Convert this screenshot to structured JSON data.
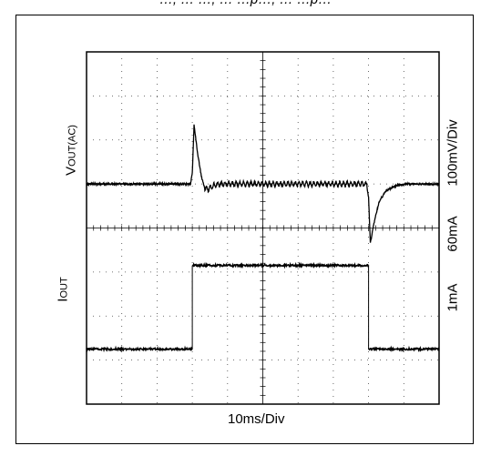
{
  "header": {
    "caption": "…,  …  …,  …  …p…,  …  …p…"
  },
  "chart_data": {
    "type": "line",
    "title": "",
    "xlabel": "10ms/Div",
    "divisions": {
      "x": 10,
      "y": 8
    },
    "grid": true,
    "x_range_ms": [
      0,
      100
    ],
    "series": [
      {
        "name": "VOUT(AC)",
        "scale": "100mV/Div",
        "unit": "mV",
        "points_ms_mV": [
          [
            0,
            0
          ],
          [
            29.5,
            0
          ],
          [
            30,
            25
          ],
          [
            30.5,
            135
          ],
          [
            31.5,
            70
          ],
          [
            32.5,
            20
          ],
          [
            33.5,
            -10
          ],
          [
            34.5,
            -12
          ],
          [
            36,
            -4
          ],
          [
            38,
            0
          ],
          [
            79.5,
            0
          ],
          [
            80,
            -30
          ],
          [
            80.5,
            -135
          ],
          [
            81.5,
            -90
          ],
          [
            83,
            -40
          ],
          [
            85,
            -15
          ],
          [
            88,
            -3
          ],
          [
            91,
            0
          ],
          [
            100,
            0
          ]
        ],
        "ripple_during_load_mV": 12
      },
      {
        "name": "IOUT",
        "scale_high": "60mA",
        "scale_low": "1mA",
        "levels": [
          "1mA",
          "60mA",
          "1mA"
        ],
        "step_times_ms": [
          30,
          80
        ]
      }
    ]
  },
  "labels": {
    "vout_main": "V",
    "vout_sub": "OUT(AC)",
    "iout_main": "I",
    "iout_sub": "OUT",
    "scale_v": "100mV/Div",
    "scale_i_high": "60mA",
    "scale_i_low": "1mA",
    "x_scale": "10ms/Div"
  }
}
